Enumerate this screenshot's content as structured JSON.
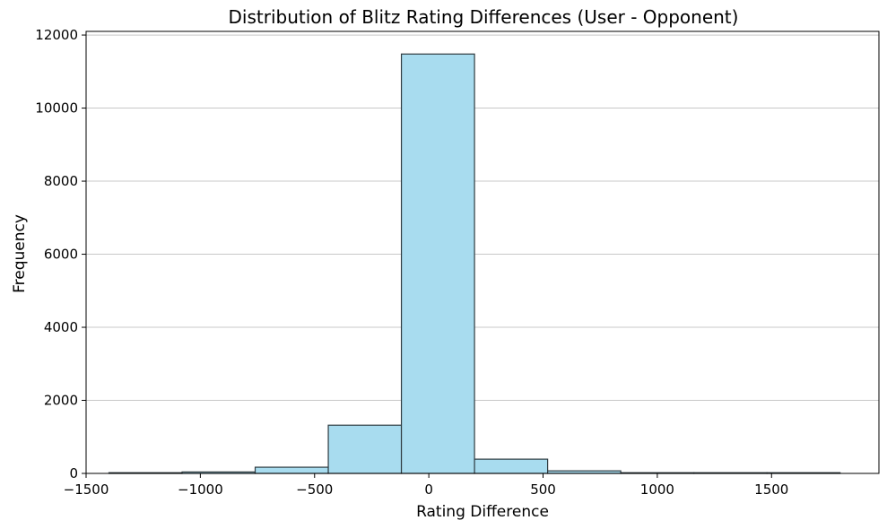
{
  "chart_data": {
    "type": "bar",
    "title": "Distribution of Blitz Rating Differences (User - Opponent)",
    "xlabel": "Rating Difference",
    "ylabel": "Frequency",
    "xlim": [
      -1500,
      1970
    ],
    "ylim": [
      0,
      12100
    ],
    "x_ticks": [
      -1500,
      -1000,
      -500,
      0,
      500,
      1000,
      1500
    ],
    "x_tick_labels": [
      "−1500",
      "−1000",
      "−500",
      "0",
      "500",
      "1000",
      "1500"
    ],
    "y_ticks": [
      0,
      2000,
      4000,
      6000,
      8000,
      10000,
      12000
    ],
    "y_tick_labels": [
      "0",
      "2000",
      "4000",
      "6000",
      "8000",
      "10000",
      "12000"
    ],
    "grid": {
      "y": true,
      "x": false
    },
    "bins": [
      {
        "start": -1400,
        "end": -1080,
        "count": 15
      },
      {
        "start": -1080,
        "end": -760,
        "count": 40
      },
      {
        "start": -760,
        "end": -440,
        "count": 170
      },
      {
        "start": -440,
        "end": -120,
        "count": 1320
      },
      {
        "start": -120,
        "end": 200,
        "count": 11480
      },
      {
        "start": 200,
        "end": 520,
        "count": 390
      },
      {
        "start": 520,
        "end": 840,
        "count": 70
      },
      {
        "start": 840,
        "end": 1160,
        "count": 15
      },
      {
        "start": 1160,
        "end": 1480,
        "count": 3
      },
      {
        "start": 1480,
        "end": 1800,
        "count": 2
      }
    ],
    "colors": {
      "bar_fill": "#a8dcef",
      "bar_edge": "#2f3b40",
      "grid": "#c8c8c8",
      "axis": "#000000"
    }
  }
}
